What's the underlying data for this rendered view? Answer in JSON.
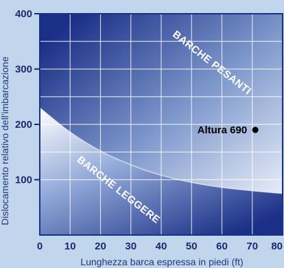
{
  "chart_data": {
    "type": "scatter",
    "title": "",
    "xlabel": "Lunghezza barca espressa in piedi (ft)",
    "ylabel": "Dislocamento relativo dell'imbarcazione",
    "xlim": [
      0,
      80
    ],
    "ylim": [
      0,
      400
    ],
    "x_ticks": [
      0,
      10,
      20,
      30,
      40,
      50,
      60,
      70,
      80
    ],
    "y_ticks": [
      100,
      200,
      300,
      400
    ],
    "grid": true,
    "boundary_curve": [
      {
        "x": 0,
        "y": 230
      },
      {
        "x": 10,
        "y": 186
      },
      {
        "x": 20,
        "y": 152
      },
      {
        "x": 30,
        "y": 127
      },
      {
        "x": 40,
        "y": 108
      },
      {
        "x": 50,
        "y": 95
      },
      {
        "x": 60,
        "y": 86
      },
      {
        "x": 70,
        "y": 80
      },
      {
        "x": 80,
        "y": 75
      }
    ],
    "regions": [
      {
        "label": "BARCHE PESANTI"
      },
      {
        "label": "BARCHE LEGGERE"
      }
    ],
    "points": [
      {
        "label": "Altura 690",
        "x": 71,
        "y": 190
      }
    ],
    "colors": {
      "background": "#bfd6ec",
      "plot_dark": "#1a2f86",
      "plot_light": "#ffffff",
      "grid": "#ffffff",
      "tick_text": "#1a2a6c"
    }
  }
}
